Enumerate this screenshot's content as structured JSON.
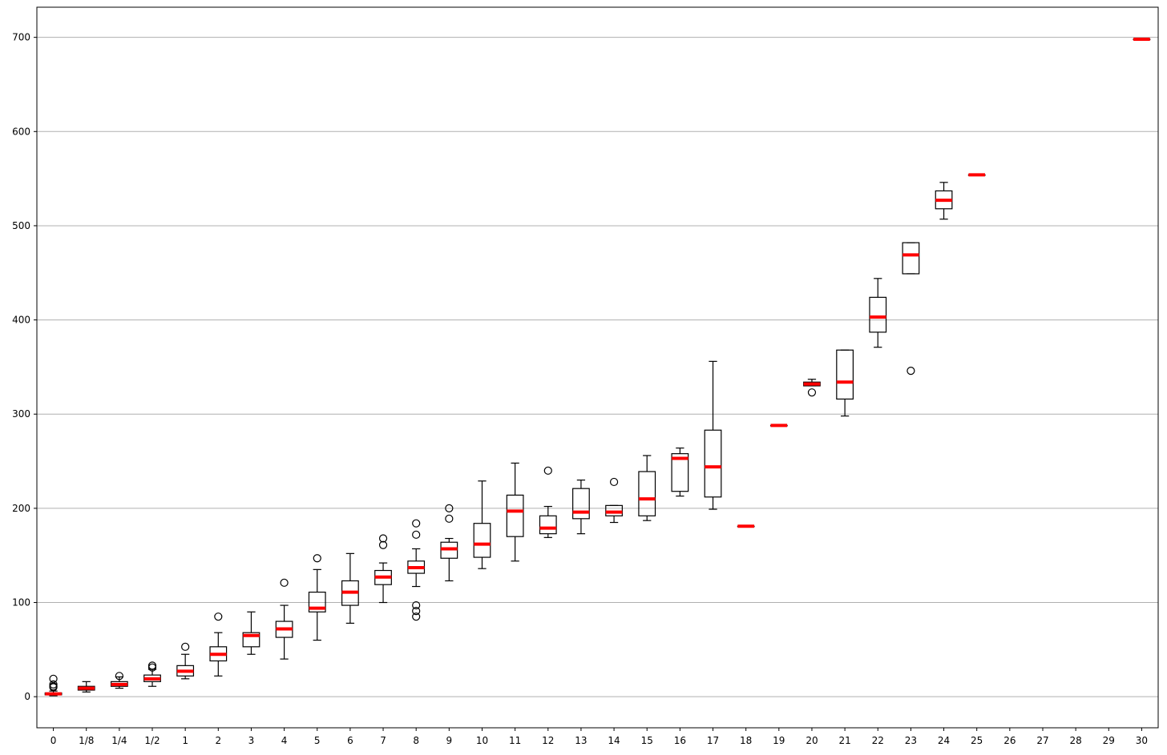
{
  "chart_data": {
    "type": "box",
    "title": "",
    "xlabel": "",
    "ylabel": "",
    "categories": [
      "0",
      "1/8",
      "1/4",
      "1/2",
      "1",
      "2",
      "3",
      "4",
      "5",
      "6",
      "7",
      "8",
      "9",
      "10",
      "11",
      "12",
      "13",
      "14",
      "15",
      "16",
      "17",
      "18",
      "19",
      "20",
      "21",
      "22",
      "23",
      "24",
      "25",
      "26",
      "27",
      "28",
      "29",
      "30"
    ],
    "ylim": [
      -33,
      732
    ],
    "yticks": [
      0,
      100,
      200,
      300,
      400,
      500,
      600,
      700
    ],
    "ytick_labels": [
      "0",
      "100",
      "200",
      "300",
      "400",
      "500",
      "600",
      "700"
    ],
    "grid": "horizontal",
    "colors": {
      "box": "#000000",
      "median": "#ff0000",
      "grid": "#b0b0b0",
      "background": "#ffffff"
    },
    "boxes": [
      {
        "category": "0",
        "whislo": 1,
        "q1": 2,
        "med": 3,
        "q3": 4,
        "whishi": 6,
        "fliers": [
          10,
          11,
          13,
          19
        ]
      },
      {
        "category": "1/8",
        "whislo": 5,
        "q1": 7,
        "med": 9,
        "q3": 11,
        "whishi": 16,
        "fliers": []
      },
      {
        "category": "1/4",
        "whislo": 9,
        "q1": 11,
        "med": 13,
        "q3": 16,
        "whishi": 21,
        "fliers": [
          22
        ]
      },
      {
        "category": "1/2",
        "whislo": 11,
        "q1": 16,
        "med": 19,
        "q3": 23,
        "whishi": 29,
        "fliers": [
          31,
          33
        ]
      },
      {
        "category": "1",
        "whislo": 19,
        "q1": 22,
        "med": 27,
        "q3": 33,
        "whishi": 45,
        "fliers": [
          53
        ]
      },
      {
        "category": "2",
        "whislo": 22,
        "q1": 38,
        "med": 45,
        "q3": 53,
        "whishi": 68,
        "fliers": [
          85
        ]
      },
      {
        "category": "3",
        "whislo": 45,
        "q1": 53,
        "med": 65,
        "q3": 68,
        "whishi": 90,
        "fliers": []
      },
      {
        "category": "4",
        "whislo": 40,
        "q1": 63,
        "med": 72,
        "q3": 80,
        "whishi": 97,
        "fliers": [
          121
        ]
      },
      {
        "category": "5",
        "whislo": 60,
        "q1": 90,
        "med": 94,
        "q3": 111,
        "whishi": 135,
        "fliers": [
          147
        ]
      },
      {
        "category": "6",
        "whislo": 78,
        "q1": 97,
        "med": 111,
        "q3": 123,
        "whishi": 152,
        "fliers": []
      },
      {
        "category": "7",
        "whislo": 100,
        "q1": 119,
        "med": 127,
        "q3": 134,
        "whishi": 142,
        "fliers": [
          161,
          168
        ]
      },
      {
        "category": "8",
        "whislo": 117,
        "q1": 131,
        "med": 137,
        "q3": 144,
        "whishi": 157,
        "fliers": [
          85,
          91,
          97,
          172,
          184
        ]
      },
      {
        "category": "9",
        "whislo": 123,
        "q1": 147,
        "med": 157,
        "q3": 164,
        "whishi": 168,
        "fliers": [
          189,
          200
        ]
      },
      {
        "category": "10",
        "whislo": 136,
        "q1": 148,
        "med": 162,
        "q3": 184,
        "whishi": 229,
        "fliers": []
      },
      {
        "category": "11",
        "whislo": 144,
        "q1": 170,
        "med": 197,
        "q3": 214,
        "whishi": 248,
        "fliers": []
      },
      {
        "category": "12",
        "whislo": 169,
        "q1": 173,
        "med": 179,
        "q3": 192,
        "whishi": 202,
        "fliers": [
          240
        ]
      },
      {
        "category": "13",
        "whislo": 173,
        "q1": 189,
        "med": 196,
        "q3": 221,
        "whishi": 230,
        "fliers": []
      },
      {
        "category": "14",
        "whislo": 185,
        "q1": 192,
        "med": 196,
        "q3": 203,
        "whishi": 203,
        "fliers": [
          228
        ]
      },
      {
        "category": "15",
        "whislo": 187,
        "q1": 192,
        "med": 210,
        "q3": 239,
        "whishi": 256,
        "fliers": []
      },
      {
        "category": "16",
        "whislo": 213,
        "q1": 218,
        "med": 253,
        "q3": 258,
        "whishi": 264,
        "fliers": []
      },
      {
        "category": "17",
        "whislo": 199,
        "q1": 212,
        "med": 244,
        "q3": 283,
        "whishi": 356,
        "fliers": []
      },
      {
        "category": "18",
        "whislo": 181,
        "q1": 181,
        "med": 181,
        "q3": 181,
        "whishi": 181,
        "fliers": []
      },
      {
        "category": "19",
        "whislo": 288,
        "q1": 288,
        "med": 288,
        "q3": 288,
        "whishi": 288,
        "fliers": []
      },
      {
        "category": "20",
        "whislo": 330,
        "q1": 330,
        "med": 332,
        "q3": 334,
        "whishi": 337,
        "fliers": [
          323
        ]
      },
      {
        "category": "21",
        "whislo": 298,
        "q1": 316,
        "med": 334,
        "q3": 368,
        "whishi": 368,
        "fliers": []
      },
      {
        "category": "22",
        "whislo": 371,
        "q1": 387,
        "med": 403,
        "q3": 424,
        "whishi": 444,
        "fliers": []
      },
      {
        "category": "23",
        "whislo": 449,
        "q1": 449,
        "med": 469,
        "q3": 482,
        "whishi": 482,
        "fliers": [
          346
        ]
      },
      {
        "category": "24",
        "whislo": 507,
        "q1": 518,
        "med": 527,
        "q3": 537,
        "whishi": 546,
        "fliers": []
      },
      {
        "category": "25",
        "whislo": 554,
        "q1": 554,
        "med": 554,
        "q3": 554,
        "whishi": 554,
        "fliers": []
      },
      {
        "category": "26",
        "empty": true
      },
      {
        "category": "27",
        "empty": true
      },
      {
        "category": "28",
        "empty": true
      },
      {
        "category": "29",
        "empty": true
      },
      {
        "category": "30",
        "whislo": 698,
        "q1": 698,
        "med": 698,
        "q3": 698,
        "whishi": 698,
        "fliers": []
      }
    ]
  }
}
